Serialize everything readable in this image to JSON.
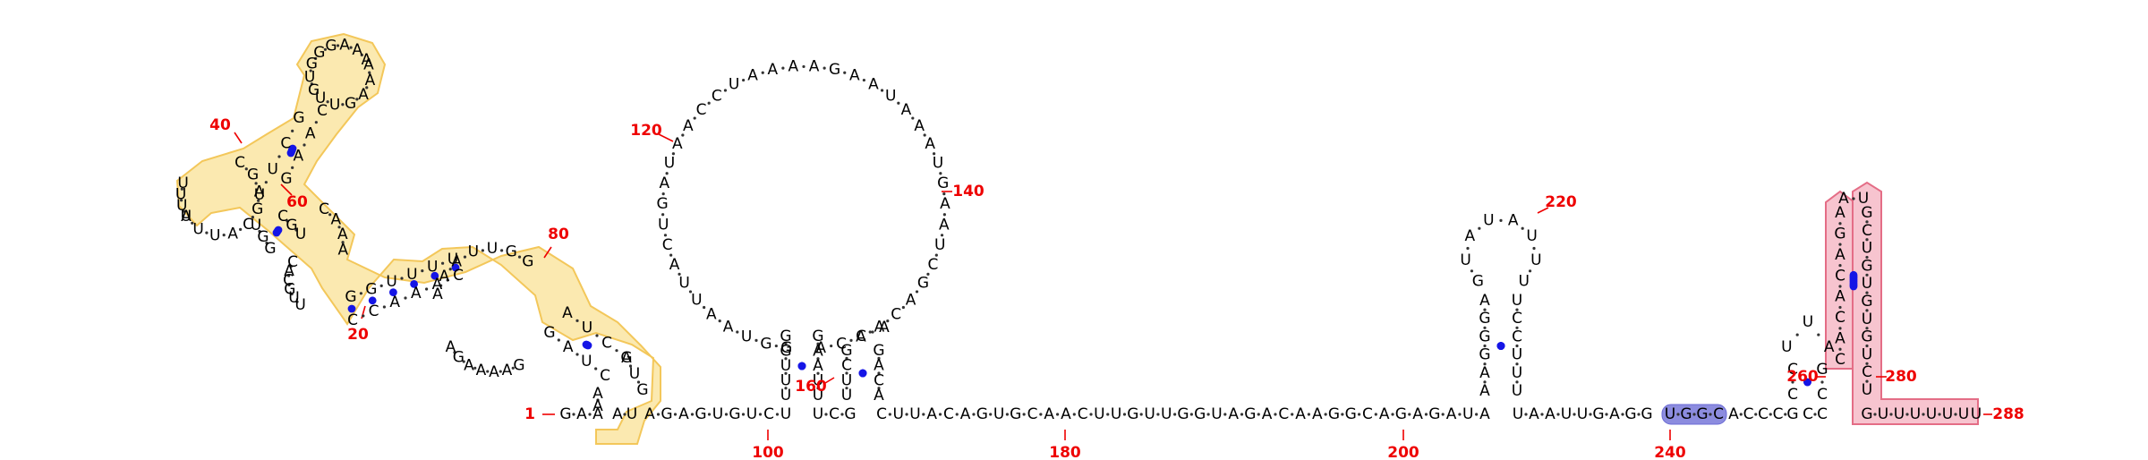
{
  "colors": {
    "nucleotide": "#000000",
    "backbone_dot": "#333333",
    "pair_dot": "#1515e6",
    "number": "#ee0000",
    "highlight_yellow_fill": "#fbe9b0",
    "highlight_yellow_stroke": "#f3c75a",
    "highlight_blue_fill": "#8c8cdf",
    "highlight_blue_stroke": "#6b6bd4",
    "highlight_pink_fill": "#f7c4cf",
    "highlight_pink_stroke": "#e46d86"
  },
  "sequence_segments": [
    {
      "id": "5p-start",
      "text": "GAA"
    },
    {
      "id": "loop-a-3p",
      "text": "AU"
    },
    {
      "id": "spacer-1",
      "text": "AGAGUGUCU"
    },
    {
      "id": "spacer-2",
      "text": "UCG"
    },
    {
      "id": "long-linker",
      "text": "CUUACAGUGCAACUUGUUGGUAGACAAGGCAGAGAUA"
    },
    {
      "id": "linker-4",
      "text": "UAAUUGAGG"
    },
    {
      "id": "blue-motif",
      "text": "UGGC"
    },
    {
      "id": "linker-5",
      "text": "ACCCG"
    },
    {
      "id": "linker-6",
      "text": "CC"
    },
    {
      "id": "tail",
      "text": "GUUUUUU"
    },
    {
      "id": "3p-end",
      "text": "U"
    }
  ],
  "helices": {
    "h1_left": "CAAACC",
    "h1_right": "GGUUUU",
    "h2_left": "UGG",
    "h2_right": "CGU",
    "h3_left": "GAUC",
    "h3_right": "AUCG",
    "h4_left": "UUCG",
    "h4_right": "GAAC",
    "h5_left": "UUUUGG",
    "h5_right": "GAAUAU",
    "h6_left": "AAGGGA",
    "h6_right": "UUUCCU",
    "h7_left": "GC",
    "h7_right": "CG",
    "h8_left": "CACACAGA",
    "h8_right": "UCUGUGUG"
  },
  "loops": {
    "big_loop": "GGUAAUUACUGAUAACCUAAAAGAAUAAAUGAAUCGACAACA",
    "top_loop": "GUGGGAAA",
    "mid_loop": "AAAGUU",
    "internal_a": "CGAGCAUUU",
    "internal_b": "UUGCAC",
    "internal_c": "AAAUUGG",
    "internal_d": "GAAAAGA",
    "hp220_loop": "GUAUAUUU",
    "small_hp": "UUA",
    "side_loop": "CAUGA",
    "pink_cap": "AU"
  },
  "numbers": [
    {
      "id": "n1",
      "label": "1"
    },
    {
      "id": "n20",
      "label": "20"
    },
    {
      "id": "n40",
      "label": "40"
    },
    {
      "id": "n60",
      "label": "60"
    },
    {
      "id": "n80",
      "label": "80"
    },
    {
      "id": "n100",
      "label": "100"
    },
    {
      "id": "n120",
      "label": "120"
    },
    {
      "id": "n140",
      "label": "140"
    },
    {
      "id": "n160",
      "label": "160"
    },
    {
      "id": "n180",
      "label": "180"
    },
    {
      "id": "n200",
      "label": "200"
    },
    {
      "id": "n220",
      "label": "220"
    },
    {
      "id": "n240",
      "label": "240"
    },
    {
      "id": "n260",
      "label": "260"
    },
    {
      "id": "n280",
      "label": "280"
    },
    {
      "id": "n288",
      "label": "288"
    }
  ]
}
